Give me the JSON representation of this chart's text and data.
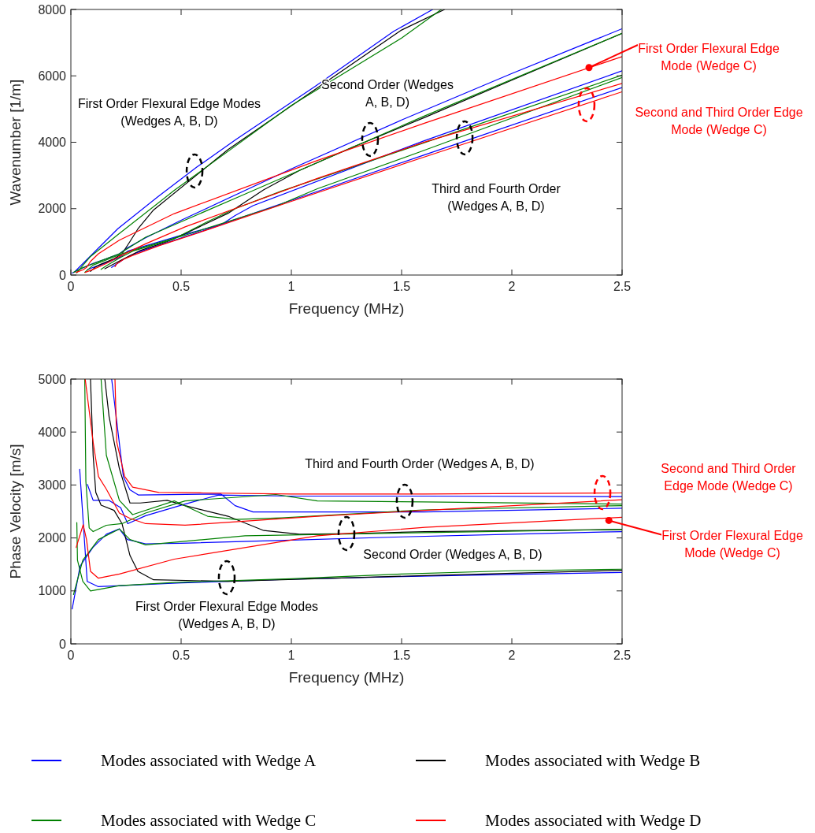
{
  "chart_data": [
    {
      "type": "line",
      "xlabel": "Frequency (MHz)",
      "ylabel": "Wavenumber [1/m]",
      "xlim": [
        0,
        2.5
      ],
      "ylim": [
        0,
        8000
      ],
      "xticks": [
        0,
        0.5,
        1,
        1.5,
        2,
        2.5
      ],
      "yticks": [
        0,
        2000,
        4000,
        6000,
        8000
      ],
      "grid": false,
      "legend": false,
      "line_style": "solid",
      "marker": "none",
      "series": [
        {
          "color": "#0000ff",
          "x": [
            0.018,
            0.214,
            0.393,
            0.571,
            0.75,
            1.107,
            1.464,
            1.641
          ],
          "values": [
            100,
            1400,
            2350,
            3250,
            4090,
            5680,
            7340,
            8000
          ]
        },
        {
          "color": "#0000ff",
          "x": [
            0.006,
            0.042,
            0.1,
            0.161,
            0.22,
            0.256,
            0.339,
            0.5,
            1,
            1.5,
            2,
            2.5
          ],
          "values": [
            60,
            180,
            350,
            490,
            640,
            820,
            1120,
            1650,
            3200,
            4670,
            6070,
            7420
          ]
        },
        {
          "color": "#0000ff",
          "x": [
            0.185,
            0.238,
            0.268,
            0.307,
            0.68,
            0.745,
            0.826,
            1.6,
            2.5
          ],
          "values": [
            230,
            470,
            580,
            690,
            1510,
            1790,
            2090,
            4040,
            6150
          ]
        },
        {
          "color": "#0000ff",
          "x": [
            0.075,
            0.101,
            0.173,
            0.226,
            0.258,
            0.339,
            0.518,
            0.67,
            1.0,
            1.6,
            2.5
          ],
          "values": [
            160,
            230,
            400,
            550,
            720,
            880,
            1230,
            1500,
            2250,
            3610,
            5650
          ]
        },
        {
          "color": "#000000",
          "x": [
            0.089,
            0.101,
            0.113,
            0.137,
            0.196,
            0.232,
            0.268,
            0.304,
            0.375,
            0.713,
            1.0,
            1.5,
            1.695
          ],
          "values": [
            110,
            180,
            250,
            330,
            490,
            640,
            1010,
            1390,
            1960,
            3780,
            5100,
            7380,
            8000
          ]
        },
        {
          "color": "#000000",
          "x": [
            0.154,
            0.22,
            0.315,
            0.437,
            0.518,
            0.713,
            0.875,
            1.037,
            1.281,
            1.606,
            2.0,
            2.5
          ],
          "values": [
            190,
            420,
            740,
            1010,
            1250,
            1860,
            2570,
            3150,
            3860,
            4750,
            5870,
            7280
          ]
        },
        {
          "color": "#008000",
          "x": [
            0.027,
            0.054,
            0.089,
            0.22,
            0.469,
            1.0,
            1.5,
            1.68
          ],
          "values": [
            70,
            290,
            560,
            1250,
            2550,
            5110,
            7140,
            8000
          ]
        },
        {
          "color": "#008000",
          "x": [
            0.012,
            0.054,
            0.125,
            0.22,
            0.339,
            0.79,
            1.6,
            2.5
          ],
          "values": [
            80,
            220,
            400,
            640,
            1140,
            2440,
            4780,
            7280
          ]
        },
        {
          "color": "#008000",
          "x": [
            0.063,
            0.101,
            0.232,
            0.339,
            0.518,
            0.93,
            1.118,
            1.6,
            2.5
          ],
          "values": [
            80,
            300,
            640,
            860,
            1200,
            2070,
            2600,
            3750,
            5950
          ]
        },
        {
          "color": "#008000",
          "x": [
            0.137,
            0.161,
            0.22,
            0.28,
            0.469,
            0.62,
            0.745,
            0.956,
            1.6,
            2.5
          ],
          "values": [
            170,
            280,
            510,
            720,
            1090,
            1610,
            2000,
            2530,
            3980,
            6020
          ]
        },
        {
          "color": "#ff0000",
          "x": [
            0.024,
            0.056,
            0.071,
            0.089,
            0.125,
            0.22,
            0.469,
            1.118,
            1.606,
            2.5
          ],
          "values": [
            80,
            160,
            230,
            410,
            640,
            1050,
            1850,
            3450,
            4580,
            6580
          ]
        },
        {
          "color": "#ff0000",
          "x": [
            0.065,
            0.101,
            0.161,
            0.22,
            0.339,
            0.518,
            1.118,
            1.606,
            2.5
          ],
          "values": [
            80,
            170,
            350,
            560,
            940,
            1450,
            2910,
            4010,
            5770
          ]
        },
        {
          "color": "#ff0000",
          "x": [
            0.2,
            0.208,
            0.244,
            0.28,
            0.399,
            0.6,
            1.0,
            1.6,
            2.5
          ],
          "values": [
            250,
            340,
            490,
            590,
            880,
            1320,
            2220,
            3550,
            5520
          ]
        }
      ],
      "annotations": [
        "First Order Flexural Edge Modes\n(Wedges A, B, D)",
        "Second Order (Wedges\nA, B, D)",
        "Third and Fourth Order\n(Wedges A, B, D)",
        {
          "text": "First Order Flexural Edge\nMode (Wedge C)",
          "x": 2.35,
          "y": 6250
        },
        "Second and Third Order Edge\nMode (Wedge C)"
      ]
    },
    {
      "type": "line",
      "xlabel": "Frequency (MHz)",
      "ylabel": "Phase Velocity [m/s]",
      "xlim": [
        0,
        2.5
      ],
      "ylim": [
        0,
        5000
      ],
      "xticks": [
        0,
        0.5,
        1,
        1.5,
        2,
        2.5
      ],
      "yticks": [
        0,
        1000,
        2000,
        3000,
        4000,
        5000
      ],
      "grid": false,
      "legend": "bottom",
      "line_style": "solid",
      "marker": "none",
      "series": [
        {
          "name": "Modes associated with Wedge A",
          "color": "#0000ff",
          "x": [
            0.04,
            0.074,
            0.125,
            0.5,
            1,
            1.5,
            2,
            2.5
          ],
          "values": [
            3300,
            1180,
            1080,
            1150,
            1220,
            1270,
            1310,
            1350
          ]
        },
        {
          "color": "#0000ff",
          "x": [
            0.006,
            0.042,
            0.1,
            0.161,
            0.22,
            0.256,
            0.339,
            0.5,
            1,
            1.5,
            2,
            2.5
          ],
          "values": [
            660,
            1470,
            1820,
            2070,
            2170,
            1970,
            1890,
            1900,
            1960,
            2020,
            2070,
            2120
          ]
        },
        {
          "color": "#0000ff",
          "x": [
            0.185,
            0.238,
            0.268,
            0.307,
            0.68,
            0.745,
            0.826,
            1.6,
            2.5
          ],
          "values": [
            5000,
            3160,
            2910,
            2810,
            2830,
            2610,
            2490,
            2490,
            2560
          ]
        },
        {
          "color": "#0000ff",
          "x": [
            0.075,
            0.101,
            0.173,
            0.226,
            0.258,
            0.339,
            0.518,
            0.67,
            1.0,
            1.6,
            2.5
          ],
          "values": [
            3010,
            2710,
            2710,
            2570,
            2270,
            2420,
            2640,
            2810,
            2790,
            2790,
            2780
          ]
        },
        {
          "name": "Modes associated with Wedge B",
          "color": "#000000",
          "x": [
            0.089,
            0.101,
            0.113,
            0.137,
            0.196,
            0.232,
            0.268,
            0.304,
            0.375,
            0.713,
            1.606,
            2.5
          ],
          "values": [
            5000,
            3560,
            2860,
            2620,
            2520,
            2270,
            1670,
            1370,
            1210,
            1180,
            1290,
            1390
          ]
        },
        {
          "color": "#000000",
          "x": [
            0.154,
            0.173,
            0.22,
            0.268,
            0.315,
            0.437,
            0.518,
            0.713,
            0.875,
            1.037,
            1.281,
            1.606,
            2.5
          ],
          "values": [
            5000,
            4300,
            3310,
            2660,
            2660,
            2710,
            2610,
            2410,
            2140,
            2070,
            2080,
            2120,
            2160
          ]
        },
        {
          "name": "Modes associated with Wedge C",
          "color": "#008000",
          "x": [
            0.027,
            0.03,
            0.054,
            0.089,
            0.22,
            0.469,
            1.0,
            1.5,
            2.0,
            2.5
          ],
          "values": [
            2290,
            1580,
            1180,
            1000,
            1100,
            1160,
            1230,
            1320,
            1380,
            1410
          ]
        },
        {
          "color": "#008000",
          "x": [
            0.012,
            0.054,
            0.125,
            0.22,
            0.268,
            0.339,
            0.79,
            1.6,
            2.5
          ],
          "values": [
            930,
            1580,
            1970,
            2170,
            1970,
            1870,
            2040,
            2100,
            2160
          ]
        },
        {
          "color": "#008000",
          "x": [
            0.063,
            0.068,
            0.083,
            0.101,
            0.161,
            0.232,
            0.339,
            0.518,
            0.93,
            1.118,
            1.6,
            2.5
          ],
          "values": [
            5000,
            3070,
            2190,
            2120,
            2240,
            2270,
            2470,
            2700,
            2820,
            2700,
            2680,
            2640
          ]
        },
        {
          "color": "#008000",
          "x": [
            0.137,
            0.161,
            0.22,
            0.28,
            0.469,
            0.62,
            0.745,
            0.956,
            1.6,
            2.5
          ],
          "values": [
            5000,
            3560,
            2710,
            2440,
            2700,
            2410,
            2350,
            2380,
            2530,
            2610
          ]
        },
        {
          "name": "Modes associated with Wedge D",
          "color": "#ff0000",
          "x": [
            0.024,
            0.056,
            0.071,
            0.089,
            0.125,
            0.22,
            0.469,
            1.118,
            1.606,
            2.5
          ],
          "values": [
            1820,
            2250,
            1970,
            1370,
            1240,
            1320,
            1600,
            2040,
            2200,
            2390
          ]
        },
        {
          "color": "#ff0000",
          "x": [
            0.065,
            0.101,
            0.125,
            0.161,
            0.22,
            0.268,
            0.339,
            0.518,
            1.118,
            1.606,
            2.5
          ],
          "values": [
            5000,
            3810,
            3160,
            2920,
            2470,
            2370,
            2270,
            2240,
            2410,
            2520,
            2720
          ]
        },
        {
          "color": "#ff0000",
          "x": [
            0.2,
            0.208,
            0.244,
            0.28,
            0.399,
            0.6,
            1.0,
            1.6,
            2.5
          ],
          "values": [
            5000,
            3810,
            3160,
            2960,
            2860,
            2850,
            2830,
            2830,
            2850
          ]
        }
      ],
      "annotations": [
        "Third and Fourth Order (Wedges A, B, D)",
        "Second Order (Wedges A, B, D)",
        "First Order Flexural Edge Modes\n(Wedges A, B, D)",
        "Second and Third Order\nEdge Mode (Wedge C)",
        {
          "text": "First Order Flexural Edge\nMode (Wedge C)",
          "x": 2.44,
          "y": 2330
        }
      ]
    }
  ]
}
